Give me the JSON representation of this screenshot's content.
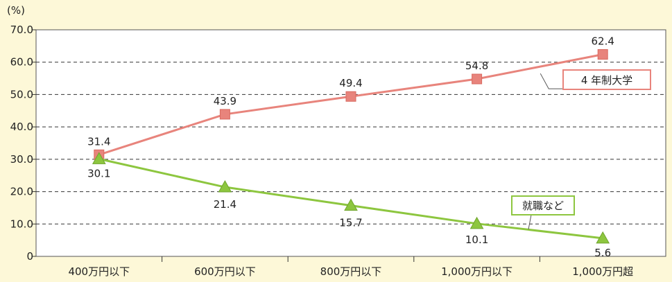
{
  "chart_data": {
    "type": "line",
    "ylabel": "(%)",
    "ylim": [
      0,
      70
    ],
    "yticks": [
      "0",
      "10.0",
      "20.0",
      "30.0",
      "40.0",
      "50.0",
      "60.0",
      "70.0"
    ],
    "categories": [
      "400万円以下",
      "600万円以下",
      "800万円以下",
      "1,000万円以下",
      "1,000万円超"
    ],
    "grid": true,
    "series": [
      {
        "name": "4 年制大学",
        "values": [
          31.4,
          43.9,
          49.4,
          54.8,
          62.4
        ],
        "labels": [
          "31.4",
          "43.9",
          "49.4",
          "54.8",
          "62.4"
        ],
        "color": "#e8847c",
        "marker": "square"
      },
      {
        "name": "就職など",
        "values": [
          30.1,
          21.4,
          15.7,
          10.1,
          5.6
        ],
        "labels": [
          "30.1",
          "21.4",
          "15.7",
          "10.1",
          "5.6"
        ],
        "color": "#8dc63f",
        "marker": "triangle"
      }
    ]
  }
}
